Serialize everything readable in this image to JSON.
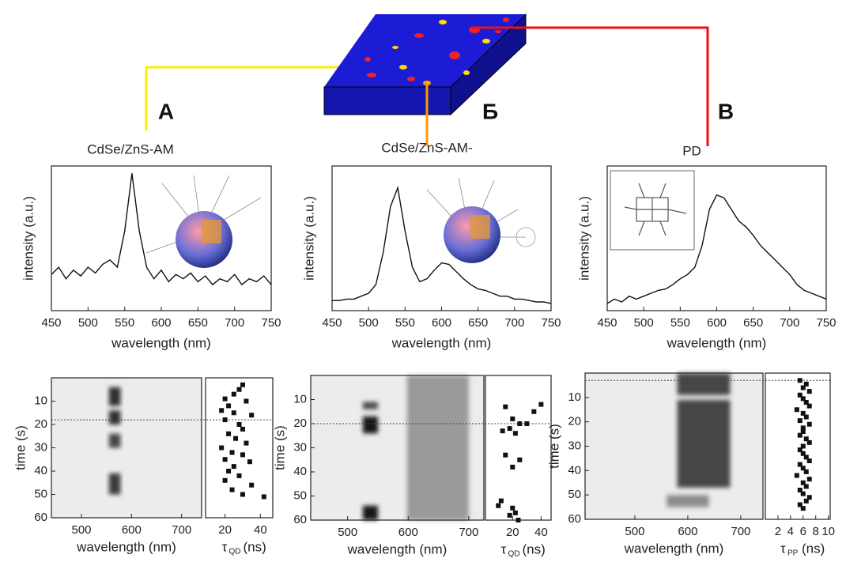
{
  "chart_data": [
    {
      "type": "line",
      "label": "А",
      "title": "CdSe/ZnS-AM",
      "xlabel": "wavelength (nm)",
      "ylabel": "intensity (a.u.)",
      "x": [
        450,
        460,
        470,
        480,
        490,
        500,
        510,
        520,
        530,
        540,
        550,
        560,
        570,
        580,
        590,
        600,
        610,
        620,
        630,
        640,
        650,
        660,
        670,
        680,
        690,
        700,
        710,
        720,
        730,
        740,
        750
      ],
      "values": [
        0.25,
        0.3,
        0.22,
        0.28,
        0.24,
        0.3,
        0.26,
        0.32,
        0.35,
        0.3,
        0.55,
        0.95,
        0.55,
        0.3,
        0.22,
        0.28,
        0.2,
        0.25,
        0.22,
        0.26,
        0.2,
        0.24,
        0.18,
        0.22,
        0.2,
        0.25,
        0.18,
        0.22,
        0.2,
        0.24,
        0.18
      ],
      "color": "#111111",
      "xlim": [
        450,
        750
      ],
      "xticks": [
        450,
        500,
        550,
        600,
        650,
        700,
        750
      ],
      "ylim": [
        0,
        1
      ]
    },
    {
      "type": "line",
      "label": "Б",
      "title": "CdSe/ZnS-AM-",
      "xlabel": "wavelength (nm)",
      "ylabel": "intensity (a.u.)",
      "x": [
        450,
        460,
        470,
        480,
        490,
        500,
        510,
        520,
        530,
        540,
        550,
        560,
        570,
        580,
        590,
        600,
        610,
        620,
        630,
        640,
        650,
        660,
        670,
        680,
        690,
        700,
        710,
        720,
        730,
        740,
        750
      ],
      "values": [
        0.07,
        0.07,
        0.08,
        0.08,
        0.1,
        0.12,
        0.18,
        0.4,
        0.72,
        0.85,
        0.55,
        0.3,
        0.2,
        0.22,
        0.28,
        0.33,
        0.32,
        0.27,
        0.22,
        0.18,
        0.15,
        0.14,
        0.12,
        0.1,
        0.1,
        0.08,
        0.08,
        0.07,
        0.06,
        0.06,
        0.05
      ],
      "color": "#111111",
      "xlim": [
        450,
        750
      ],
      "xticks": [
        450,
        500,
        550,
        600,
        650,
        700,
        750
      ],
      "ylim": [
        0,
        1
      ]
    },
    {
      "type": "line",
      "label": "В",
      "title": "PD",
      "xlabel": "wavelength (nm)",
      "ylabel": "intensity (a.u.)",
      "x": [
        450,
        460,
        470,
        480,
        490,
        500,
        510,
        520,
        530,
        540,
        550,
        560,
        570,
        580,
        590,
        600,
        610,
        620,
        630,
        640,
        650,
        660,
        670,
        680,
        690,
        700,
        710,
        720,
        730,
        740,
        750
      ],
      "values": [
        0.05,
        0.08,
        0.06,
        0.1,
        0.08,
        0.1,
        0.12,
        0.14,
        0.15,
        0.18,
        0.22,
        0.25,
        0.3,
        0.45,
        0.7,
        0.8,
        0.78,
        0.7,
        0.62,
        0.58,
        0.52,
        0.45,
        0.4,
        0.35,
        0.3,
        0.25,
        0.18,
        0.14,
        0.12,
        0.1,
        0.08
      ],
      "color": "#111111",
      "xlim": [
        450,
        750
      ],
      "xticks": [
        450,
        500,
        550,
        600,
        650,
        700,
        750
      ],
      "ylim": [
        0,
        1
      ]
    },
    {
      "type": "heatmap",
      "xlabel": "wavelength (nm)",
      "ylabel": "time (s)",
      "xlim": [
        440,
        740
      ],
      "xticks": [
        500,
        600,
        700
      ],
      "ylim": [
        0,
        60
      ],
      "yticks": [
        10,
        20,
        30,
        40,
        50,
        60
      ],
      "hlines": [
        18
      ],
      "regions": [
        {
          "x": [
            555,
            578
          ],
          "y": [
            4,
            12
          ],
          "level": 0.8
        },
        {
          "x": [
            555,
            578
          ],
          "y": [
            14,
            20
          ],
          "level": 0.8
        },
        {
          "x": [
            555,
            578
          ],
          "y": [
            24,
            30
          ],
          "level": 0.7
        },
        {
          "x": [
            555,
            578
          ],
          "y": [
            41,
            50
          ],
          "level": 0.75
        }
      ]
    },
    {
      "type": "heatmap",
      "xlabel": "wavelength (nm)",
      "ylabel": "time (s)",
      "xlim": [
        439,
        725
      ],
      "xticks": [
        500,
        600,
        700
      ],
      "ylim": [
        0,
        60
      ],
      "yticks": [
        10,
        20,
        30,
        40,
        50,
        60
      ],
      "hlines": [
        20
      ],
      "regions": [
        {
          "x": [
            598,
            700
          ],
          "y": [
            0,
            60
          ],
          "level": 0.35
        },
        {
          "x": [
            525,
            550
          ],
          "y": [
            11,
            14
          ],
          "level": 0.7
        },
        {
          "x": [
            525,
            550
          ],
          "y": [
            17,
            24
          ],
          "level": 0.9
        },
        {
          "x": [
            525,
            550
          ],
          "y": [
            54,
            60
          ],
          "level": 0.9
        }
      ]
    },
    {
      "type": "heatmap",
      "xlabel": "wavelength (nm)",
      "ylabel": "time (s)",
      "xlim": [
        406,
        742
      ],
      "xticks": [
        500,
        600,
        700
      ],
      "ylim": [
        0,
        60
      ],
      "yticks": [
        10,
        20,
        30,
        40,
        50,
        60
      ],
      "hlines": [
        3
      ],
      "regions": [
        {
          "x": [
            580,
            680
          ],
          "y": [
            0,
            9
          ],
          "level": 0.7
        },
        {
          "x": [
            580,
            680
          ],
          "y": [
            11,
            47
          ],
          "level": 0.7
        },
        {
          "x": [
            560,
            640
          ],
          "y": [
            50,
            55
          ],
          "level": 0.4
        }
      ]
    },
    {
      "type": "scatter",
      "xlabel": "τ",
      "xlabel_sub": "QD",
      "xlabel_unit": "(ns)",
      "xlim": [
        9,
        47
      ],
      "xticks": [
        20,
        40
      ],
      "ylim": [
        0,
        60
      ],
      "color": "#111111",
      "x": [
        30,
        28,
        25,
        20,
        32,
        22,
        18,
        25,
        35,
        20,
        28,
        30,
        22,
        26,
        32,
        18,
        24,
        30,
        20,
        34,
        25,
        22,
        28,
        20,
        35,
        24,
        30,
        42
      ],
      "y": [
        3,
        5,
        7,
        9,
        10,
        12,
        14,
        15,
        16,
        18,
        20,
        22,
        24,
        26,
        28,
        30,
        32,
        33,
        35,
        36,
        38,
        40,
        42,
        44,
        46,
        48,
        50,
        51
      ]
    },
    {
      "type": "scatter",
      "xlabel": "τ",
      "xlabel_sub": "QD",
      "xlabel_unit": "(ns)",
      "xlim": [
        1,
        47
      ],
      "xticks": [
        20,
        40
      ],
      "ylim": [
        0,
        60
      ],
      "color": "#111111",
      "x": [
        15,
        20,
        25,
        18,
        22,
        30,
        40,
        35,
        13,
        15,
        25,
        20,
        12,
        10,
        20,
        22,
        18,
        24
      ],
      "y": [
        13,
        18,
        20,
        22,
        24,
        20,
        12,
        15,
        23,
        33,
        35,
        38,
        52,
        54,
        55,
        57,
        58,
        60
      ]
    },
    {
      "type": "scatter",
      "xlabel": "τ",
      "xlabel_sub": "PP",
      "xlabel_unit": "(ns)",
      "xlim": [
        0,
        10.3
      ],
      "xticks": [
        2,
        4,
        6,
        8,
        10
      ],
      "ylim": [
        0,
        60
      ],
      "color": "#111111",
      "x": [
        5.5,
        6.5,
        6,
        7,
        5.5,
        6,
        6.5,
        7,
        5,
        6,
        6.5,
        5.5,
        7,
        6,
        6,
        5.5,
        6.5,
        7,
        6,
        5.5,
        6,
        6.5,
        7,
        5.5,
        6,
        6.5,
        5,
        7,
        6,
        6.5,
        5.5,
        6,
        7,
        6.5,
        5.5,
        6
      ],
      "y": [
        3,
        4.5,
        6,
        7.5,
        9,
        10.5,
        12,
        13.5,
        15,
        16.5,
        18,
        19.5,
        21,
        22.5,
        24,
        25.5,
        27,
        28.5,
        30,
        31.5,
        33,
        34.5,
        36,
        37.5,
        39,
        40.5,
        42,
        43.5,
        45,
        46.5,
        48,
        49.5,
        51,
        52.5,
        54,
        55.5
      ]
    }
  ]
}
